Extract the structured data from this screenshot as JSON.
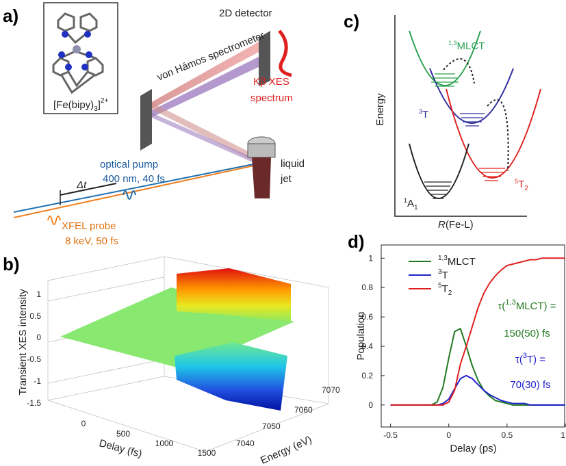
{
  "panel_a": {
    "label": "a)",
    "complex": {
      "pre": "[Fe(bipy)",
      "sub": "3",
      "post": "]",
      "sup": "2+"
    },
    "detector": "2D detector",
    "spectrometer": "von Hámos spectrometer",
    "xes": [
      "Kβ XES",
      "spectrum"
    ],
    "pump": [
      "optical pump",
      "400 nm, 40 fs"
    ],
    "delay": "Δt",
    "jet": [
      "liquid",
      "jet"
    ],
    "probe": [
      "XFEL probe",
      "8 keV, 50 fs"
    ]
  },
  "panel_b": {
    "label": "b)",
    "zlabel": "Transient XES intensity",
    "xlabel": "Delay (fs)",
    "ylabel": "Energy (eV)",
    "zticks": [
      "1",
      "0.5",
      "0",
      "-0.5",
      "-1",
      "-1.5"
    ],
    "xticks": [
      "0",
      "500",
      "1000",
      "1500"
    ],
    "yticks": [
      "7040",
      "7050",
      "7060",
      "7070"
    ]
  },
  "panel_c": {
    "label": "c)",
    "ylabel": "Energy",
    "xlabel": {
      "italic": "R",
      "rest": "(Fe-L)"
    },
    "states": {
      "mlct": {
        "sup": "1,3",
        "main": "MLCT"
      },
      "t3": {
        "sup": "3",
        "main": "T"
      },
      "t5": {
        "sup": "5",
        "main": "T",
        "sub": "2"
      },
      "a1": {
        "sup": "1",
        "main": "A",
        "sub": "1"
      }
    }
  },
  "panel_d_label": "d)",
  "chart_data": {
    "type": "line",
    "xlabel": "Delay (ps)",
    "ylabel": "Population",
    "x": [
      -0.5,
      -0.45,
      -0.4,
      -0.35,
      -0.3,
      -0.25,
      -0.2,
      -0.15,
      -0.1,
      -0.05,
      0,
      0.05,
      0.1,
      0.15,
      0.2,
      0.25,
      0.3,
      0.35,
      0.4,
      0.45,
      0.5,
      0.55,
      0.6,
      0.65,
      0.7,
      0.75,
      0.8,
      0.85,
      0.9,
      0.95,
      1
    ],
    "series": [
      {
        "name": "MLCT",
        "superscript": "1,3",
        "color": "#1f7a1f",
        "values": [
          0,
          0,
          0,
          0,
          0,
          0,
          0,
          0,
          0.02,
          0.12,
          0.32,
          0.5,
          0.52,
          0.4,
          0.27,
          0.17,
          0.1,
          0.06,
          0.03,
          0.02,
          0.01,
          0,
          0,
          0,
          0,
          0,
          0,
          0,
          0,
          0,
          0
        ]
      },
      {
        "name": "T",
        "superscript": "3",
        "color": "#2020d0",
        "values": [
          0,
          0,
          0,
          0,
          0,
          0,
          0,
          0,
          0,
          0.01,
          0.04,
          0.11,
          0.18,
          0.2,
          0.18,
          0.14,
          0.1,
          0.07,
          0.05,
          0.03,
          0.02,
          0.01,
          0.01,
          0.01,
          0,
          0,
          0,
          0,
          0,
          0,
          0
        ]
      },
      {
        "name": "T",
        "superscript": "5",
        "subscript": "2",
        "color": "#e02020",
        "values": [
          0,
          0,
          0,
          0,
          0,
          0,
          0,
          0,
          0,
          0,
          0.02,
          0.1,
          0.28,
          0.4,
          0.53,
          0.66,
          0.76,
          0.83,
          0.88,
          0.92,
          0.95,
          0.96,
          0.97,
          0.98,
          0.99,
          0.99,
          1,
          1,
          1,
          1,
          1
        ]
      }
    ],
    "annotations": [
      {
        "pre": "τ(",
        "sup": "1,3",
        "post": "MLCT) ="
      },
      {
        "pre": "150(50) fs"
      },
      {
        "pre": "τ(",
        "sup": "3",
        "post": "T) ="
      },
      {
        "pre": "70(30) fs"
      }
    ],
    "xlim": [
      -0.58,
      1
    ],
    "ylim": [
      -0.15,
      1.09
    ],
    "xticks": [
      -0.5,
      0,
      0.5,
      1
    ],
    "yticks": [
      0,
      0.2,
      0.4,
      0.6,
      0.8,
      1
    ]
  }
}
